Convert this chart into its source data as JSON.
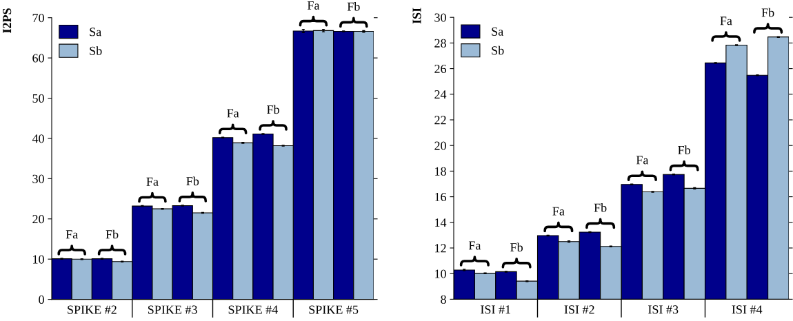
{
  "chart_data": [
    {
      "type": "bar",
      "ylabel": "I2PS",
      "categories": [
        "SPIKE #2",
        "SPIKE #3",
        "SPIKE #4",
        "SPIKE #5"
      ],
      "series": [
        {
          "name": "Sa",
          "color": "#00008b",
          "values": [
            10.1,
            23.2,
            40.2,
            66.7
          ],
          "errors": [
            0.1,
            0.1,
            0.1,
            0.4
          ]
        },
        {
          "name": "Sb",
          "color": "#9bbad6",
          "values": [
            10.0,
            22.5,
            38.9,
            66.8
          ],
          "errors": [
            0.1,
            0.1,
            0.1,
            0.3
          ]
        },
        {
          "color": "#00008b",
          "values": [
            10.1,
            23.3,
            41.1,
            66.6
          ],
          "errors": [
            0.1,
            0.1,
            0.1,
            0.1
          ]
        },
        {
          "color": "#9bbad6",
          "values": [
            9.4,
            21.5,
            38.2,
            66.6
          ],
          "errors": [
            0.1,
            0.1,
            0.1,
            0.2
          ]
        }
      ],
      "ylim": [
        0,
        70
      ],
      "yticks": [
        0,
        10,
        20,
        30,
        40,
        50,
        60,
        70
      ],
      "legend": "top left",
      "annotations": [
        "Fa",
        "Fb",
        "Fa",
        "Fb",
        "Fa",
        "Fb",
        "Fa",
        "Fb"
      ]
    },
    {
      "type": "bar",
      "ylabel": "ISI",
      "categories": [
        "ISI #1",
        "ISI #2",
        "ISI #3",
        "ISI #4"
      ],
      "series": [
        {
          "name": "Sa",
          "color": "#00008b",
          "values": [
            10.28,
            12.97,
            16.96,
            26.44
          ],
          "errors": [
            0.05,
            0.03,
            0.03,
            0.03
          ]
        },
        {
          "name": "Sb",
          "color": "#9bbad6",
          "values": [
            10.03,
            12.5,
            16.38,
            27.83
          ],
          "errors": [
            0.03,
            0.05,
            0.03,
            0.03
          ]
        },
        {
          "color": "#00008b",
          "values": [
            10.15,
            13.24,
            17.74,
            25.48
          ],
          "errors": [
            0.03,
            0.03,
            0.03,
            0.03
          ]
        },
        {
          "color": "#9bbad6",
          "values": [
            9.41,
            12.12,
            16.66,
            28.47
          ],
          "errors": [
            0.03,
            0.03,
            0.05,
            0.03
          ]
        }
      ],
      "ylim": [
        8,
        30
      ],
      "yticks": [
        8,
        10,
        12,
        14,
        16,
        18,
        20,
        22,
        24,
        26,
        28,
        30
      ],
      "legend": "top left",
      "annotations": [
        "Fa",
        "Fb",
        "Fa",
        "Fb",
        "Fa",
        "Fb",
        "Fa",
        "Fb"
      ]
    }
  ]
}
